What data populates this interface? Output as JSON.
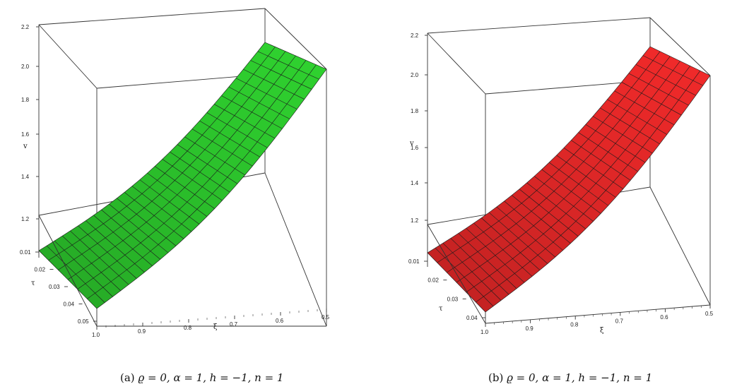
{
  "chart_data": [
    {
      "type": "surface3d",
      "panel_label": "(a)",
      "caption_math": "ϱ = 0, α = 1, h = −1, n = 1",
      "surface_color": "#2fd12f",
      "x_axis": {
        "label": "ξ",
        "range": [
          1.0,
          0.5
        ],
        "ticks": [
          "1.0",
          "0.9",
          "0.8",
          "0.7",
          "0.6",
          "0.5"
        ]
      },
      "t_axis": {
        "label": "τ",
        "range": [
          0.01,
          0.05
        ],
        "ticks": [
          "0.01",
          "0.02",
          "0.03",
          "0.04",
          "0.05"
        ]
      },
      "v_axis": {
        "label": "v",
        "range": [
          1.0,
          2.2
        ],
        "ticks": [
          "1.2",
          "1.4",
          "1.6",
          "1.8",
          "2.0",
          "2.2"
        ]
      },
      "surface": {
        "xi": [
          1.0,
          0.5
        ],
        "v_at_xi": [
          [
            1.0,
            1.0
          ],
          [
            0.5,
            2.0
          ]
        ]
      }
    },
    {
      "type": "surface3d",
      "panel_label": "(b)",
      "caption_math": "ϱ = 0, α = 1, h = −1, n = 1",
      "surface_color": "#f02a2a",
      "x_axis": {
        "label": "ξ",
        "range": [
          1.0,
          0.5
        ],
        "ticks": [
          "1.0",
          "0.9",
          "0.8",
          "0.7",
          "0.6",
          "0.5"
        ]
      },
      "t_axis": {
        "label": "τ",
        "range": [
          0.01,
          0.04
        ],
        "ticks": [
          "0.01",
          "0.02",
          "0.03",
          "0.04"
        ]
      },
      "v_axis": {
        "label": "v",
        "range": [
          1.0,
          2.2
        ],
        "ticks": [
          "1.2",
          "1.4",
          "1.6",
          "1.8",
          "2.0",
          "2.2"
        ]
      },
      "surface": {
        "xi": [
          1.0,
          0.5
        ],
        "v_at_xi": [
          [
            1.0,
            1.0
          ],
          [
            0.5,
            2.0
          ]
        ]
      }
    }
  ]
}
